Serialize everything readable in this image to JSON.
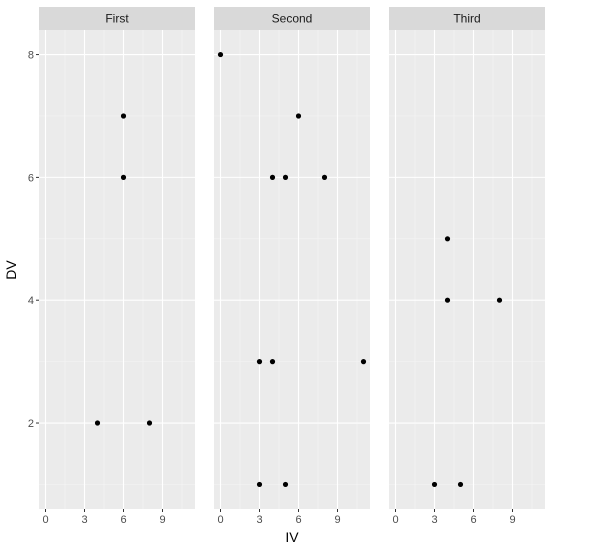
{
  "chart_data": {
    "type": "scatter",
    "xlabel": "IV",
    "ylabel": "DV",
    "xlim": [
      -0.5,
      11.5
    ],
    "ylim": [
      0.6,
      8.4
    ],
    "x_ticks": [
      0,
      3,
      6,
      9
    ],
    "y_ticks": [
      2,
      4,
      6,
      8
    ],
    "grid": true,
    "facets": [
      {
        "label": "First",
        "points": [
          {
            "x": 6,
            "y": 7
          },
          {
            "x": 6,
            "y": 6
          },
          {
            "x": 4,
            "y": 2
          },
          {
            "x": 8,
            "y": 2
          }
        ]
      },
      {
        "label": "Second",
        "points": [
          {
            "x": 0,
            "y": 8
          },
          {
            "x": 6,
            "y": 7
          },
          {
            "x": 4,
            "y": 6
          },
          {
            "x": 5,
            "y": 6
          },
          {
            "x": 8,
            "y": 6
          },
          {
            "x": 3,
            "y": 3
          },
          {
            "x": 4,
            "y": 3
          },
          {
            "x": 11,
            "y": 3
          },
          {
            "x": 3,
            "y": 1
          },
          {
            "x": 5,
            "y": 1
          }
        ]
      },
      {
        "label": "Third",
        "points": [
          {
            "x": 4,
            "y": 5
          },
          {
            "x": 4,
            "y": 4
          },
          {
            "x": 8,
            "y": 4
          },
          {
            "x": 3,
            "y": 1
          },
          {
            "x": 5,
            "y": 1
          }
        ]
      }
    ]
  },
  "colors": {
    "panel_background": "#ebebeb",
    "strip_background": "#d9d9d9",
    "grid_major": "#ffffff",
    "grid_minor": "#f4f4f4",
    "point": "#000000",
    "tick_text": "#4d4d4d",
    "tick_mark": "#333333"
  }
}
